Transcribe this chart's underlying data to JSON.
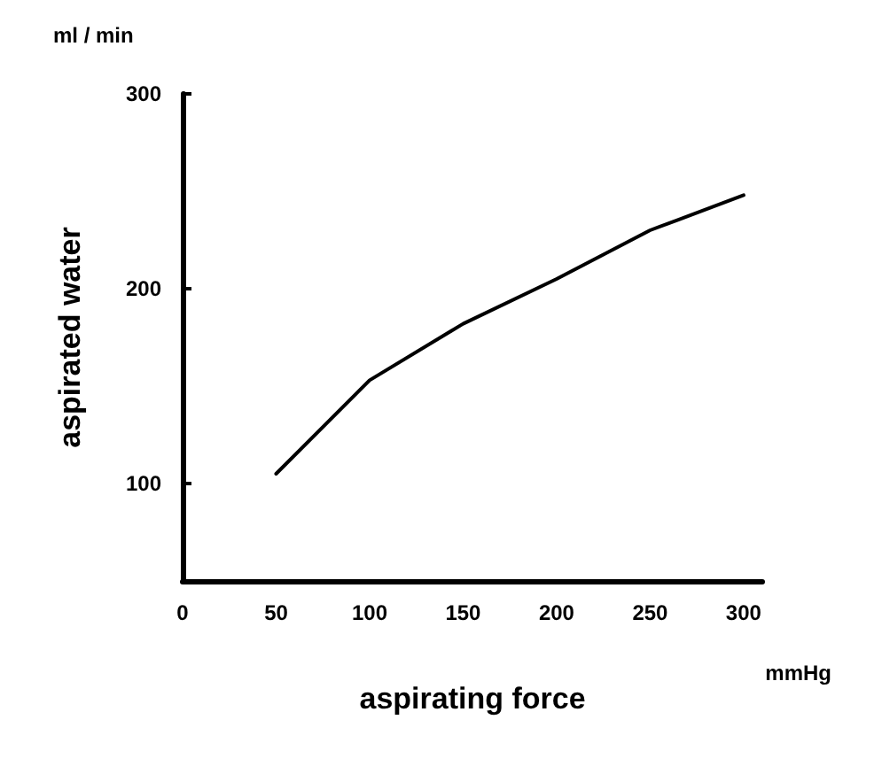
{
  "chart_data": {
    "type": "line",
    "x": [
      50,
      100,
      150,
      200,
      250,
      300
    ],
    "values": [
      105,
      153,
      182,
      205,
      230,
      248
    ],
    "color": "#000000",
    "xlabel": "aspirating force",
    "ylabel": "aspirated water",
    "annotations": [
      "ml / min",
      "mmHg"
    ],
    "xlim": [
      0,
      310
    ],
    "xticks": [
      0,
      50,
      100,
      150,
      200,
      250,
      300
    ],
    "ylim": [
      50,
      300
    ],
    "yticks": [
      100,
      200,
      300
    ],
    "grid": false,
    "marker": "none",
    "line_style": "solid"
  }
}
